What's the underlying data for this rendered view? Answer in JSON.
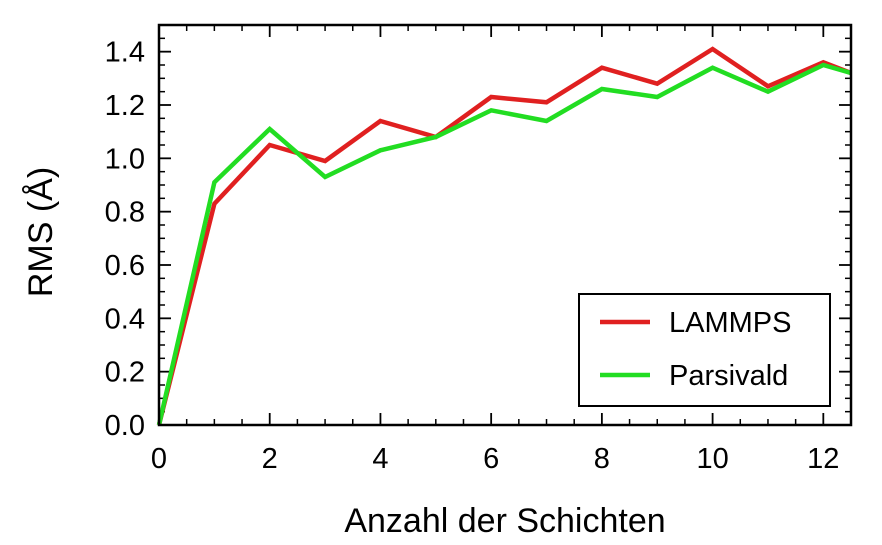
{
  "chart_data": {
    "type": "line",
    "xlabel": "Anzahl der Schichten",
    "ylabel": "RMS (Å)",
    "xlim": [
      0,
      12.5
    ],
    "ylim": [
      0,
      1.5
    ],
    "xticks": [
      0,
      2,
      4,
      6,
      8,
      10,
      12
    ],
    "xtick_labels": [
      "0",
      "2",
      "4",
      "6",
      "8",
      "10",
      "12"
    ],
    "yticks": [
      0,
      0.2,
      0.4,
      0.6,
      0.8,
      1.0,
      1.2,
      1.4
    ],
    "ytick_labels": [
      "0.0",
      "0.2",
      "0.4",
      "0.6",
      "0.8",
      "1.0",
      "1.2",
      "1.4"
    ],
    "grid": false,
    "legend_position": "bottom-right",
    "series": [
      {
        "name": "LAMMPS",
        "color": "#e02020",
        "x": [
          0,
          1,
          2,
          3,
          4,
          5,
          6,
          7,
          8,
          9,
          10,
          11,
          12,
          12.5
        ],
        "y": [
          0.0,
          0.83,
          1.05,
          0.99,
          1.14,
          1.08,
          1.23,
          1.21,
          1.34,
          1.28,
          1.41,
          1.27,
          1.36,
          1.32
        ]
      },
      {
        "name": "Parsivald",
        "color": "#22dd22",
        "x": [
          0,
          1,
          2,
          3,
          4,
          5,
          6,
          7,
          8,
          9,
          10,
          11,
          12,
          12.5
        ],
        "y": [
          0.0,
          0.91,
          1.11,
          0.93,
          1.03,
          1.08,
          1.18,
          1.14,
          1.26,
          1.23,
          1.34,
          1.25,
          1.35,
          1.32
        ]
      }
    ]
  }
}
